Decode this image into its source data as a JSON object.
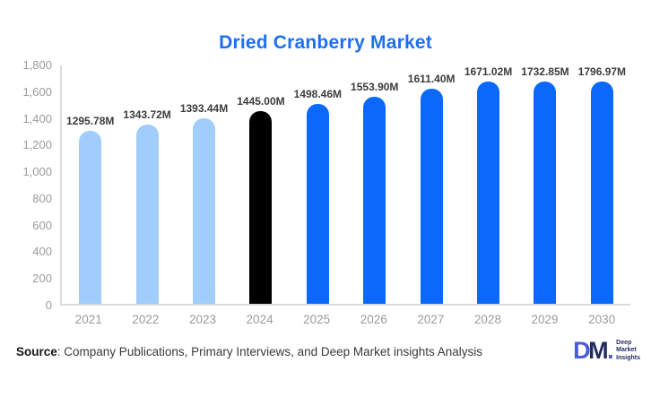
{
  "chart_data": {
    "type": "bar",
    "title": "Dried Cranberry Market",
    "categories": [
      "2021",
      "2022",
      "2023",
      "2024",
      "2025",
      "2026",
      "2027",
      "2028",
      "2029",
      "2030"
    ],
    "values": [
      1295.78,
      1343.72,
      1393.44,
      1445.0,
      1498.46,
      1553.9,
      1611.4,
      1671.02,
      1732.85,
      1796.97
    ],
    "bar_labels": [
      "1295.78M",
      "1343.72M",
      "1393.44M",
      "1445.00M",
      "1498.46M",
      "1553.90M",
      "1611.40M",
      "1671.02M",
      "1732.85M",
      "1796.97M"
    ],
    "bar_colors": [
      "#A0CDFC",
      "#A0CDFC",
      "#A0CDFC",
      "#000000",
      "#0A69FA",
      "#0A69FA",
      "#0A69FA",
      "#0A69FA",
      "#0A69FA",
      "#0A69FA"
    ],
    "xlabel": "",
    "ylabel": "",
    "ylim": [
      0,
      1800
    ],
    "yticks": [
      {
        "label": "0",
        "value": 0
      },
      {
        "label": "200",
        "value": 200
      },
      {
        "label": "400",
        "value": 400
      },
      {
        "label": "600",
        "value": 600
      },
      {
        "label": "800",
        "value": 800
      },
      {
        "label": "1,000",
        "value": 1000
      },
      {
        "label": "1,200",
        "value": 1200
      },
      {
        "label": "1,400",
        "value": 1400
      },
      {
        "label": "1,600",
        "value": 1600
      },
      {
        "label": "1,800",
        "value": 1800
      }
    ],
    "grid": false,
    "legend": false
  },
  "footer": {
    "source_label": "Source",
    "source_text": ": Company Publications, Primary Interviews, and Deep Market insights Analysis"
  },
  "logo": {
    "letter_d": "D",
    "letter_m": "M",
    "dot": ".",
    "lines": [
      "Deep",
      "Market",
      "Insights"
    ]
  },
  "colors": {
    "title": "#1E6EF0",
    "bar_light_blue": "#A0CDFC",
    "bar_black": "#000000",
    "bar_blue": "#0A69FA",
    "axis_line": "#DCDCDC",
    "tick_text": "#9B9B9B",
    "value_label_text": "#3C3C3C",
    "logo_blue": "#4A5BD7",
    "logo_navy": "#232B63"
  }
}
